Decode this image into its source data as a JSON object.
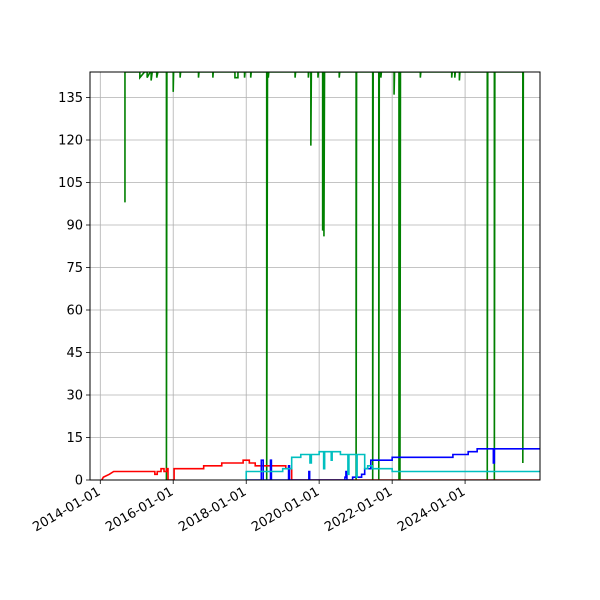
{
  "chart_data": {
    "type": "line",
    "title": "",
    "xlabel": "",
    "ylabel": "",
    "grid": true,
    "xlim": [
      "2013-09-20",
      "2026-01-20"
    ],
    "ylim": [
      0,
      144
    ],
    "x_ticks": [
      "2014-01-01",
      "2016-01-01",
      "2018-01-01",
      "2020-01-01",
      "2022-01-01",
      "2024-01-01"
    ],
    "y_ticks": [
      0,
      15,
      30,
      45,
      60,
      75,
      90,
      105,
      120,
      135
    ],
    "colors": {
      "green": "#008000",
      "red": "#ff0000",
      "blue": "#0000ff",
      "cyan": "#00bfbf",
      "grid": "#b0b0b0"
    },
    "series": [
      {
        "color": "green",
        "points": [
          [
            "2014-09-05",
            144
          ],
          [
            "2014-09-05",
            98
          ],
          [
            "2014-09-05",
            144
          ],
          [
            "2015-02-01",
            144
          ],
          [
            "2015-02-01",
            142
          ],
          [
            "2015-03-20",
            144
          ],
          [
            "2015-04-15",
            144
          ],
          [
            "2015-04-15",
            142
          ],
          [
            "2015-05-15",
            144
          ],
          [
            "2015-05-25",
            144
          ],
          [
            "2015-05-25",
            141
          ],
          [
            "2015-06-05",
            144
          ],
          [
            "2015-07-20",
            144
          ],
          [
            "2015-07-20",
            142
          ],
          [
            "2015-08-01",
            144
          ],
          [
            "2015-10-25",
            144
          ],
          [
            "2015-10-25",
            0
          ],
          [
            "2015-10-30",
            144
          ],
          [
            "2016-01-01",
            144
          ],
          [
            "2016-01-01",
            137
          ],
          [
            "2016-01-05",
            144
          ],
          [
            "2016-03-10",
            144
          ],
          [
            "2016-03-10",
            142
          ],
          [
            "2016-03-15",
            144
          ],
          [
            "2016-09-10",
            144
          ],
          [
            "2016-09-10",
            142
          ],
          [
            "2016-09-15",
            144
          ],
          [
            "2017-02-01",
            144
          ],
          [
            "2017-02-01",
            142
          ],
          [
            "2017-02-05",
            144
          ],
          [
            "2017-09-10",
            144
          ],
          [
            "2017-09-10",
            142
          ],
          [
            "2017-10-10",
            142
          ],
          [
            "2017-10-10",
            144
          ],
          [
            "2017-12-15",
            144
          ],
          [
            "2017-12-15",
            142
          ],
          [
            "2017-12-20",
            144
          ],
          [
            "2018-02-15",
            144
          ],
          [
            "2018-02-15",
            142
          ],
          [
            "2018-02-20",
            144
          ],
          [
            "2018-07-25",
            144
          ],
          [
            "2018-07-25",
            0
          ],
          [
            "2018-08-02",
            144
          ],
          [
            "2018-08-10",
            144
          ],
          [
            "2018-08-10",
            142
          ],
          [
            "2018-08-15",
            144
          ],
          [
            "2019-05-05",
            144
          ],
          [
            "2019-05-05",
            142
          ],
          [
            "2019-05-10",
            144
          ],
          [
            "2019-09-15",
            144
          ],
          [
            "2019-09-15",
            142
          ],
          [
            "2019-09-20",
            144
          ],
          [
            "2019-10-10",
            144
          ],
          [
            "2019-10-10",
            118
          ],
          [
            "2019-10-15",
            144
          ],
          [
            "2019-12-20",
            144
          ],
          [
            "2019-12-20",
            142
          ],
          [
            "2019-12-25",
            144
          ],
          [
            "2020-02-05",
            144
          ],
          [
            "2020-02-05",
            88
          ],
          [
            "2020-02-10",
            144
          ],
          [
            "2020-02-18",
            144
          ],
          [
            "2020-02-18",
            86
          ],
          [
            "2020-02-24",
            144
          ],
          [
            "2020-07-20",
            144
          ],
          [
            "2020-07-20",
            142
          ],
          [
            "2020-07-25",
            144
          ],
          [
            "2021-01-05",
            144
          ],
          [
            "2021-01-05",
            0
          ],
          [
            "2021-01-10",
            144
          ],
          [
            "2021-06-20",
            144
          ],
          [
            "2021-06-20",
            0
          ],
          [
            "2021-06-25",
            144
          ],
          [
            "2021-08-20",
            144
          ],
          [
            "2021-08-20",
            0
          ],
          [
            "2021-08-25",
            144
          ],
          [
            "2021-09-10",
            144
          ],
          [
            "2021-09-10",
            142
          ],
          [
            "2021-09-15",
            144
          ],
          [
            "2022-01-20",
            144
          ],
          [
            "2022-01-20",
            136
          ],
          [
            "2022-01-25",
            144
          ],
          [
            "2022-03-10",
            144
          ],
          [
            "2022-03-10",
            0
          ],
          [
            "2022-03-15",
            144
          ],
          [
            "2022-03-20",
            144
          ],
          [
            "2022-03-20",
            0
          ],
          [
            "2022-03-25",
            144
          ],
          [
            "2022-10-10",
            144
          ],
          [
            "2022-10-10",
            142
          ],
          [
            "2022-10-15",
            144
          ],
          [
            "2023-08-20",
            144
          ],
          [
            "2023-08-20",
            142
          ],
          [
            "2023-08-25",
            144
          ],
          [
            "2023-09-20",
            144
          ],
          [
            "2023-09-20",
            142
          ],
          [
            "2023-09-25",
            144
          ],
          [
            "2023-11-05",
            144
          ],
          [
            "2023-11-05",
            141
          ],
          [
            "2023-11-10",
            144
          ],
          [
            "2024-08-10",
            144
          ],
          [
            "2024-08-10",
            0
          ],
          [
            "2024-08-15",
            144
          ],
          [
            "2024-10-20",
            144
          ],
          [
            "2024-10-20",
            0
          ],
          [
            "2024-10-25",
            144
          ],
          [
            "2025-08-01",
            144
          ],
          [
            "2025-08-01",
            6
          ],
          [
            "2025-08-06",
            144
          ]
        ]
      },
      {
        "color": "red",
        "points": [
          [
            "2014-01-15",
            0
          ],
          [
            "2014-02-01",
            1
          ],
          [
            "2014-04-01",
            2
          ],
          [
            "2014-05-15",
            3
          ],
          [
            "2015-07-01",
            3
          ],
          [
            "2015-07-01",
            2
          ],
          [
            "2015-07-25",
            2
          ],
          [
            "2015-07-25",
            3
          ],
          [
            "2015-09-01",
            3
          ],
          [
            "2015-09-01",
            4
          ],
          [
            "2015-10-01",
            4
          ],
          [
            "2015-10-01",
            3
          ],
          [
            "2015-10-28",
            3
          ],
          [
            "2015-10-28",
            4
          ],
          [
            "2015-11-10",
            4
          ],
          [
            "2015-11-10",
            0
          ],
          [
            "2016-01-10",
            0
          ],
          [
            "2016-01-10",
            4
          ],
          [
            "2016-11-01",
            4
          ],
          [
            "2016-11-01",
            5
          ],
          [
            "2017-05-01",
            5
          ],
          [
            "2017-05-01",
            6
          ],
          [
            "2017-12-01",
            6
          ],
          [
            "2017-12-01",
            7
          ],
          [
            "2018-02-01",
            7
          ],
          [
            "2018-02-01",
            6
          ],
          [
            "2018-04-01",
            6
          ],
          [
            "2018-04-01",
            5
          ],
          [
            "2019-02-01",
            5
          ],
          [
            "2019-02-01",
            4
          ],
          [
            "2019-04-01",
            4
          ],
          [
            "2019-04-01",
            0
          ],
          [
            "2026-01-20",
            0
          ]
        ]
      },
      {
        "color": "blue",
        "points": [
          [
            "2018-01-01",
            0
          ],
          [
            "2018-06-01",
            0
          ],
          [
            "2018-06-01",
            7
          ],
          [
            "2018-06-20",
            7
          ],
          [
            "2018-06-20",
            0
          ],
          [
            "2018-09-01",
            0
          ],
          [
            "2018-09-01",
            7
          ],
          [
            "2018-09-10",
            7
          ],
          [
            "2018-09-10",
            0
          ],
          [
            "2019-03-01",
            0
          ],
          [
            "2019-03-01",
            5
          ],
          [
            "2019-03-10",
            5
          ],
          [
            "2019-03-10",
            0
          ],
          [
            "2019-09-20",
            0
          ],
          [
            "2019-09-20",
            3
          ],
          [
            "2019-09-28",
            3
          ],
          [
            "2019-09-28",
            0
          ],
          [
            "2020-09-15",
            0
          ],
          [
            "2020-09-15",
            1
          ],
          [
            "2020-09-25",
            1
          ],
          [
            "2020-09-25",
            3
          ],
          [
            "2020-10-05",
            3
          ],
          [
            "2020-10-05",
            0
          ],
          [
            "2020-12-01",
            0
          ],
          [
            "2020-12-01",
            1
          ],
          [
            "2021-03-01",
            1
          ],
          [
            "2021-03-01",
            2
          ],
          [
            "2021-04-01",
            2
          ],
          [
            "2021-04-01",
            4
          ],
          [
            "2021-06-01",
            4
          ],
          [
            "2021-06-01",
            7
          ],
          [
            "2022-01-01",
            7
          ],
          [
            "2022-01-01",
            8
          ],
          [
            "2023-09-01",
            8
          ],
          [
            "2023-09-01",
            9
          ],
          [
            "2024-02-01",
            9
          ],
          [
            "2024-02-01",
            10
          ],
          [
            "2024-05-01",
            10
          ],
          [
            "2024-05-01",
            11
          ],
          [
            "2024-10-10",
            11
          ],
          [
            "2024-10-10",
            6
          ],
          [
            "2024-10-20",
            6
          ],
          [
            "2024-10-20",
            11
          ],
          [
            "2026-01-20",
            11
          ]
        ]
      },
      {
        "color": "cyan",
        "points": [
          [
            "2018-01-01",
            0
          ],
          [
            "2018-01-01",
            3
          ],
          [
            "2019-01-01",
            3
          ],
          [
            "2019-01-01",
            4
          ],
          [
            "2019-04-01",
            4
          ],
          [
            "2019-04-01",
            8
          ],
          [
            "2019-07-01",
            8
          ],
          [
            "2019-07-01",
            9
          ],
          [
            "2019-10-01",
            9
          ],
          [
            "2019-10-01",
            6
          ],
          [
            "2019-10-15",
            6
          ],
          [
            "2019-10-15",
            9
          ],
          [
            "2020-01-01",
            9
          ],
          [
            "2020-01-01",
            10
          ],
          [
            "2020-02-15",
            10
          ],
          [
            "2020-02-15",
            4
          ],
          [
            "2020-02-25",
            4
          ],
          [
            "2020-02-25",
            10
          ],
          [
            "2020-05-01",
            10
          ],
          [
            "2020-05-01",
            7
          ],
          [
            "2020-05-10",
            7
          ],
          [
            "2020-05-10",
            10
          ],
          [
            "2020-08-01",
            10
          ],
          [
            "2020-08-01",
            9
          ],
          [
            "2020-10-15",
            9
          ],
          [
            "2020-10-15",
            2
          ],
          [
            "2020-10-25",
            2
          ],
          [
            "2020-10-25",
            9
          ],
          [
            "2021-01-08",
            9
          ],
          [
            "2021-01-08",
            1
          ],
          [
            "2021-01-15",
            1
          ],
          [
            "2021-01-15",
            9
          ],
          [
            "2021-04-01",
            9
          ],
          [
            "2021-04-01",
            4
          ],
          [
            "2021-05-01",
            4
          ],
          [
            "2021-05-01",
            5
          ],
          [
            "2021-06-15",
            5
          ],
          [
            "2021-06-15",
            4
          ],
          [
            "2022-01-01",
            4
          ],
          [
            "2022-01-01",
            3
          ],
          [
            "2024-05-01",
            3
          ],
          [
            "2024-05-01",
            3
          ],
          [
            "2026-01-20",
            3
          ]
        ]
      }
    ]
  }
}
